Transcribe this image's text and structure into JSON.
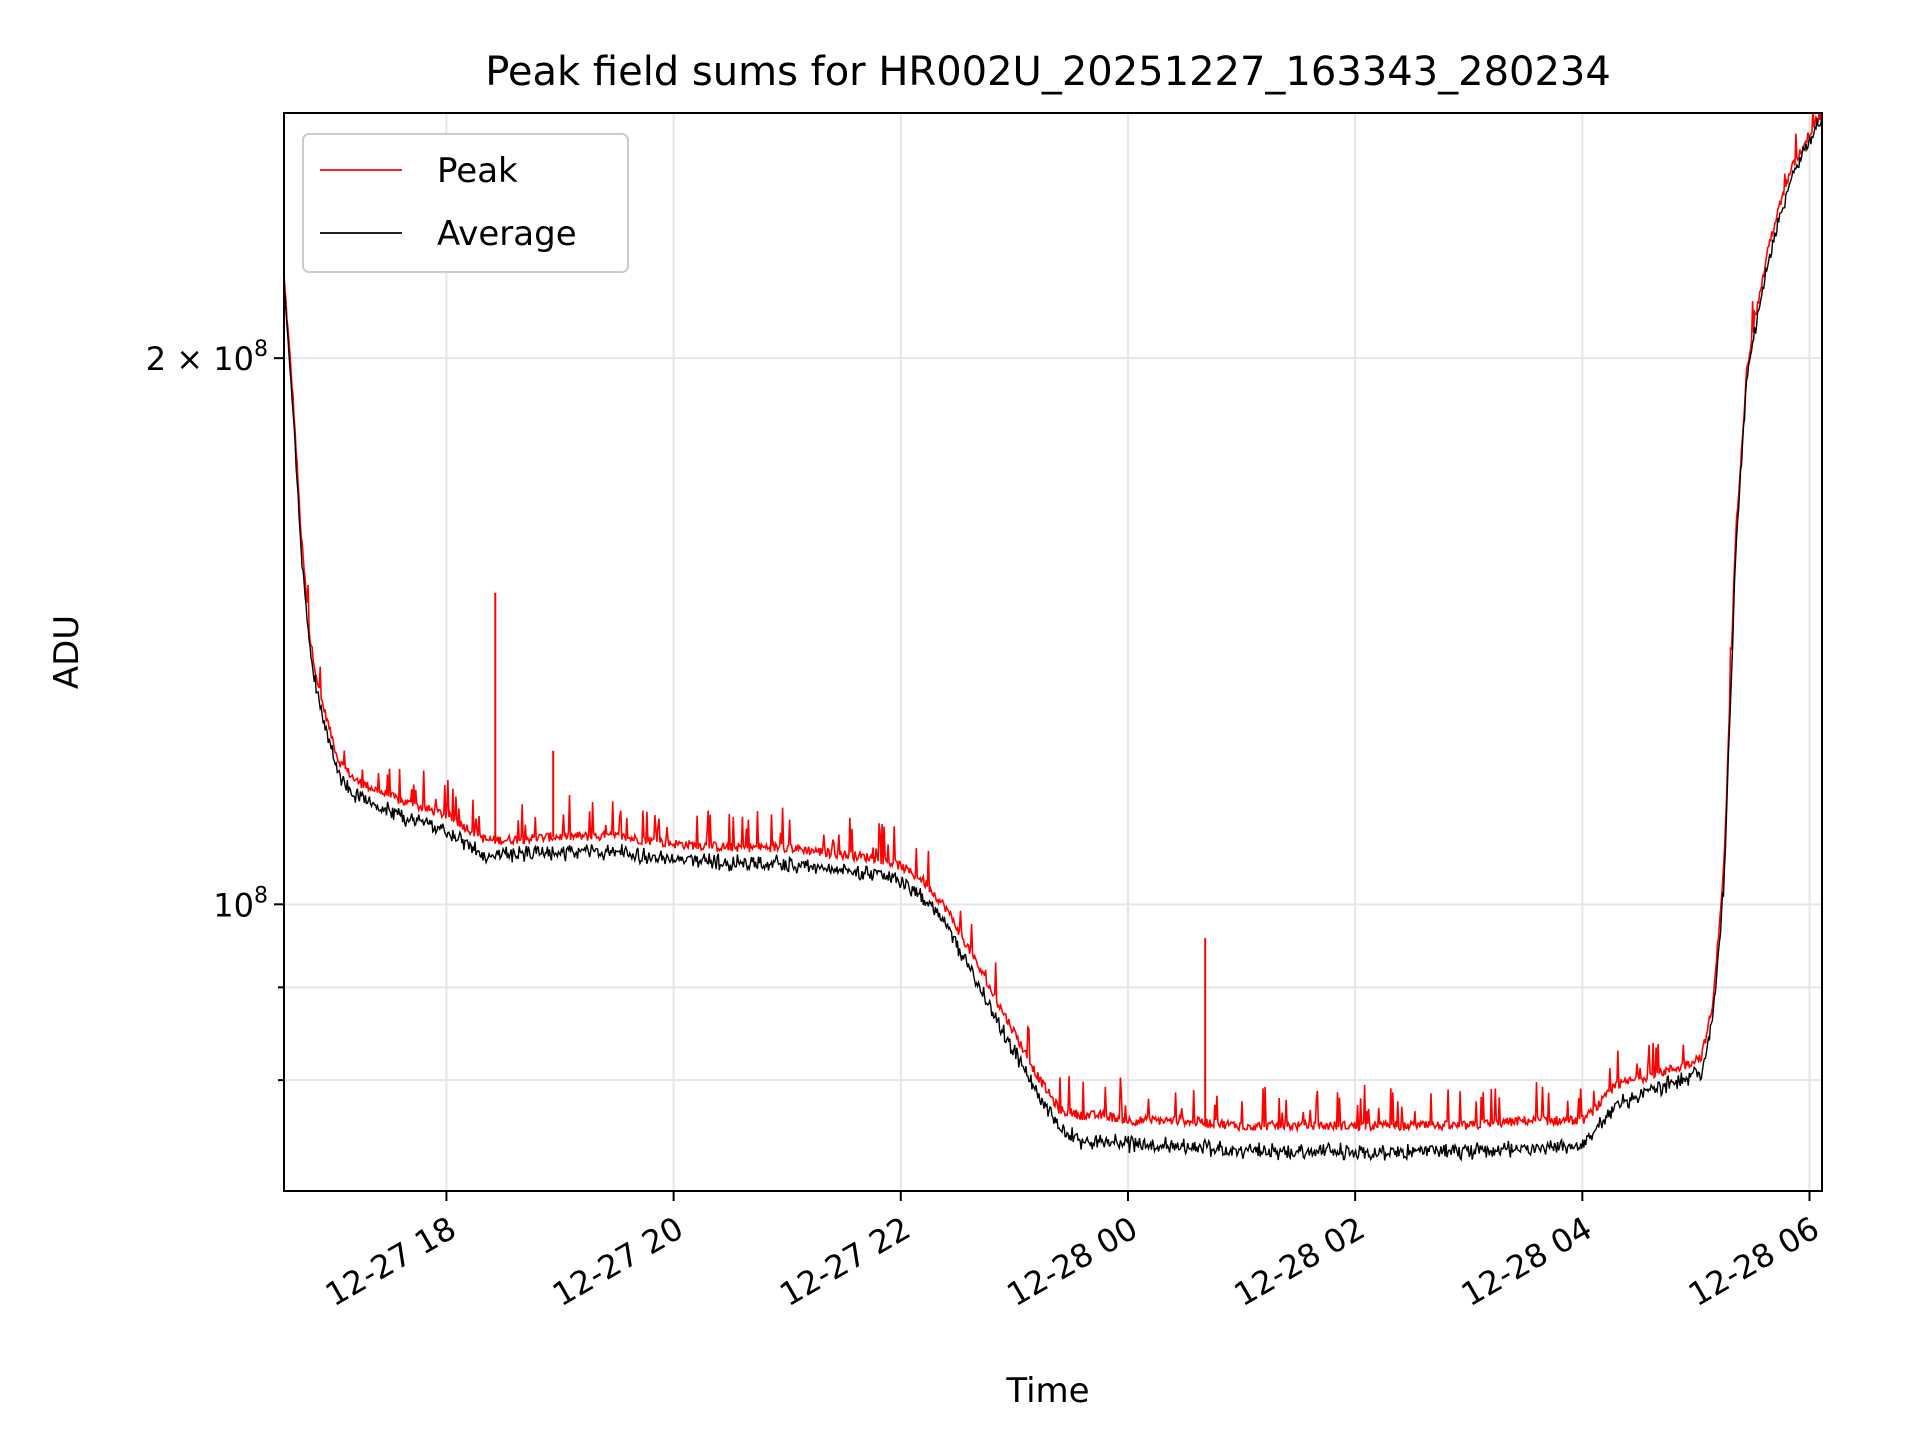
{
  "chart_data": {
    "type": "line",
    "title": "Peak field sums for HR002U_20251227_163343_280234",
    "xlabel": "Time",
    "ylabel": "ADU",
    "yscale": "log",
    "grid": true,
    "legend_position": "upper-left",
    "xlim": [
      16.57,
      30.11
    ],
    "ylim": [
      69500000,
      273000000
    ],
    "x_unit": "hours since 2025-12-27 00:00",
    "xticks": [
      {
        "value": 18,
        "label": "12-27 18"
      },
      {
        "value": 20,
        "label": "12-27 20"
      },
      {
        "value": 22,
        "label": "12-27 22"
      },
      {
        "value": 24,
        "label": "12-28 00"
      },
      {
        "value": 26,
        "label": "12-28 02"
      },
      {
        "value": 28,
        "label": "12-28 04"
      },
      {
        "value": 30,
        "label": "12-28 06"
      }
    ],
    "yticks_major": [
      {
        "value": 100000000,
        "base": "10",
        "exponent": "8",
        "mantissa": ""
      },
      {
        "value": 200000000,
        "base": "10",
        "exponent": "8",
        "mantissa": "2 × "
      }
    ],
    "yticks_minor": [
      80000000,
      90000000
    ],
    "series": [
      {
        "name": "Peak",
        "color": "#ff0000",
        "x": [
          16.57,
          16.65,
          16.72,
          16.8,
          16.88,
          16.97,
          17.05,
          17.2,
          17.4,
          17.6,
          17.8,
          18.0,
          18.2,
          18.35,
          18.5,
          19.0,
          19.5,
          20.0,
          20.5,
          21.0,
          21.5,
          21.8,
          22.0,
          22.2,
          22.4,
          22.6,
          22.8,
          23.0,
          23.2,
          23.4,
          23.6,
          23.8,
          24.0,
          24.5,
          25.0,
          25.5,
          26.0,
          26.5,
          27.0,
          27.5,
          28.0,
          28.1,
          28.3,
          28.6,
          28.9,
          29.05,
          29.15,
          29.25,
          29.35,
          29.45,
          29.55,
          29.65,
          29.75,
          29.85,
          29.95,
          30.05,
          30.11
        ],
        "values": [
          222000000,
          190000000,
          160000000,
          140000000,
          131000000,
          125000000,
          120000000,
          117000000,
          115500000,
          114000000,
          113000000,
          112000000,
          110000000,
          108500000,
          108500000,
          109000000,
          109000000,
          108000000,
          107500000,
          107500000,
          106500000,
          106000000,
          105000000,
          103000000,
          99500000,
          94500000,
          89500000,
          85000000,
          80500000,
          77000000,
          76500000,
          76500000,
          76000000,
          76000000,
          75500000,
          75500000,
          75500000,
          75500000,
          75500000,
          76000000,
          76000000,
          77000000,
          79500000,
          80500000,
          81500000,
          82500000,
          88000000,
          106000000,
          160000000,
          198000000,
          215000000,
          232000000,
          244000000,
          255000000,
          262000000,
          270000000,
          273000000
        ]
      },
      {
        "name": "Average",
        "color": "#000000",
        "x": [
          16.57,
          16.65,
          16.72,
          16.8,
          16.88,
          16.97,
          17.05,
          17.2,
          17.4,
          17.6,
          17.8,
          18.0,
          18.2,
          18.35,
          18.5,
          19.0,
          19.5,
          20.0,
          20.5,
          21.0,
          21.5,
          21.8,
          22.0,
          22.2,
          22.4,
          22.6,
          22.8,
          23.0,
          23.2,
          23.4,
          23.6,
          23.8,
          24.0,
          24.5,
          25.0,
          25.5,
          26.0,
          26.5,
          27.0,
          27.5,
          28.0,
          28.1,
          28.3,
          28.6,
          28.9,
          29.05,
          29.15,
          29.25,
          29.35,
          29.45,
          29.55,
          29.65,
          29.75,
          29.85,
          29.95,
          30.05,
          30.11
        ],
        "values": [
          220000000,
          188000000,
          158000000,
          138500000,
          129500000,
          123500000,
          118500000,
          115500000,
          114000000,
          112500000,
          111500000,
          110500000,
          108500000,
          107000000,
          107000000,
          107500000,
          107500000,
          106500000,
          106000000,
          106000000,
          105000000,
          104500000,
          103500000,
          101500000,
          98000000,
          93000000,
          88000000,
          83500000,
          79000000,
          75500000,
          74500000,
          74500000,
          74200000,
          74000000,
          73500000,
          73500000,
          73500000,
          73500000,
          73500000,
          73800000,
          74000000,
          75500000,
          78000000,
          79500000,
          80500000,
          81500000,
          87000000,
          104000000,
          157000000,
          196000000,
          213000000,
          230000000,
          242000000,
          253000000,
          261000000,
          269000000,
          272500000
        ]
      }
    ],
    "annotations": [
      {
        "type": "spike",
        "series": "Peak",
        "x": 18.43,
        "value": 148500000
      },
      {
        "type": "spike",
        "series": "Peak",
        "x": 18.94,
        "value": 121500000
      },
      {
        "type": "spike",
        "series": "Peak",
        "x": 24.68,
        "value": 95800000
      }
    ]
  }
}
